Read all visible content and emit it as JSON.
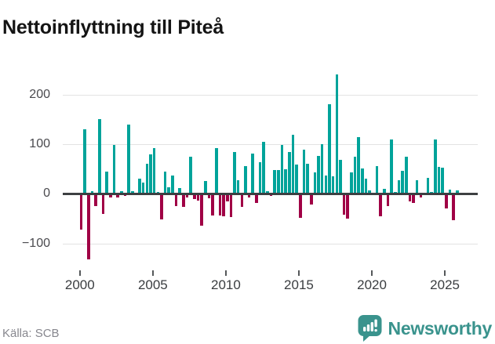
{
  "header": {
    "title": "Nettoinflyttning till Piteå"
  },
  "footer": {
    "source": "Källa: SCB",
    "brand": "Newsworthy"
  },
  "chart_data": {
    "type": "bar",
    "title": "Nettoinflyttning till Piteå",
    "xlabel": "",
    "ylabel": "",
    "frequency": "quarterly",
    "start_period": "2000-Q1",
    "end_period": "2025-Q4",
    "ylim": [
      -150,
      250
    ],
    "grid": true,
    "yticks": [
      {
        "value": -100,
        "label": "−100"
      },
      {
        "value": 0,
        "label": "0"
      },
      {
        "value": 100,
        "label": "100"
      },
      {
        "value": 200,
        "label": "200"
      }
    ],
    "xticks": [
      2000,
      2005,
      2010,
      2015,
      2020,
      2025
    ],
    "colors": {
      "positive": "#00a39a",
      "negative": "#a00045"
    },
    "series": [
      {
        "name": "Nettoinflyttning",
        "values": [
          -72,
          130,
          -132,
          6,
          -25,
          151,
          -40,
          45,
          -8,
          98,
          -8,
          6,
          -5,
          139,
          6,
          2,
          31,
          22,
          60,
          79,
          92,
          3,
          -52,
          45,
          13,
          37,
          -25,
          12,
          -26,
          -8,
          74,
          -11,
          -14,
          -65,
          25,
          -9,
          -44,
          92,
          -43,
          -46,
          -15,
          -47,
          84,
          28,
          -26,
          56,
          -8,
          81,
          -19,
          63,
          105,
          6,
          -5,
          48,
          48,
          98,
          50,
          84,
          119,
          59,
          -48,
          89,
          60,
          -21,
          43,
          76,
          100,
          37,
          180,
          36,
          240,
          68,
          -42,
          -50,
          43,
          74,
          115,
          51,
          30,
          7,
          2,
          55,
          -46,
          10,
          -25,
          110,
          3,
          28,
          47,
          75,
          -15,
          -19,
          28,
          -7,
          -2,
          32,
          3,
          109,
          54,
          53,
          -29,
          9,
          -54,
          7
        ]
      }
    ]
  }
}
